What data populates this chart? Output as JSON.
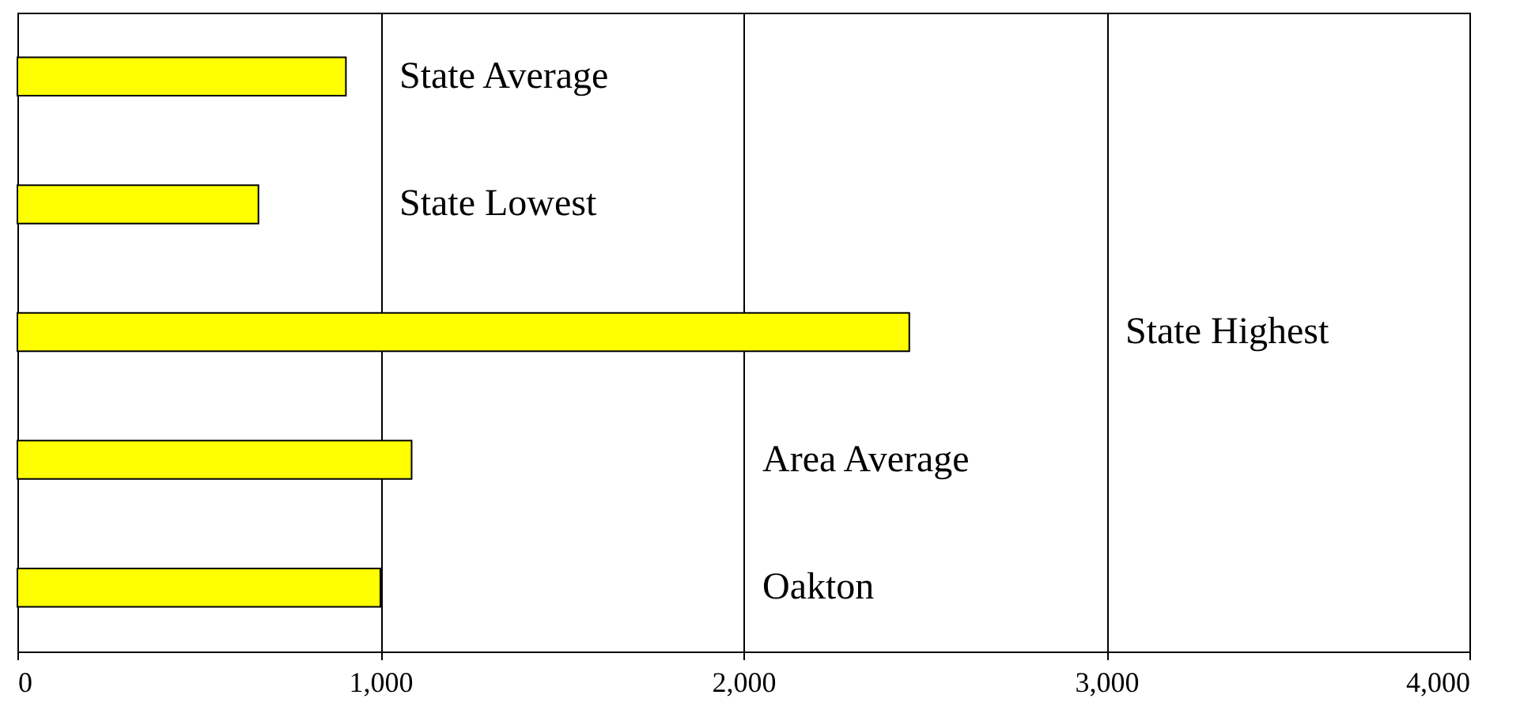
{
  "chart_data": {
    "type": "bar",
    "orientation": "horizontal",
    "categories": [
      "State Average",
      "State Lowest",
      "State Highest",
      "Area Average",
      "Oakton"
    ],
    "values": [
      905,
      664,
      2457,
      1086,
      1000
    ],
    "color": "#ffff00",
    "xlim": [
      0,
      4000
    ],
    "xticks": [
      {
        "value": 0,
        "label": "0"
      },
      {
        "value": 1000,
        "label": "1,000"
      },
      {
        "value": 2000,
        "label": "2,000"
      },
      {
        "value": 3000,
        "label": "3,000"
      },
      {
        "value": 4000,
        "label": "4,000"
      }
    ],
    "grid": "x"
  }
}
